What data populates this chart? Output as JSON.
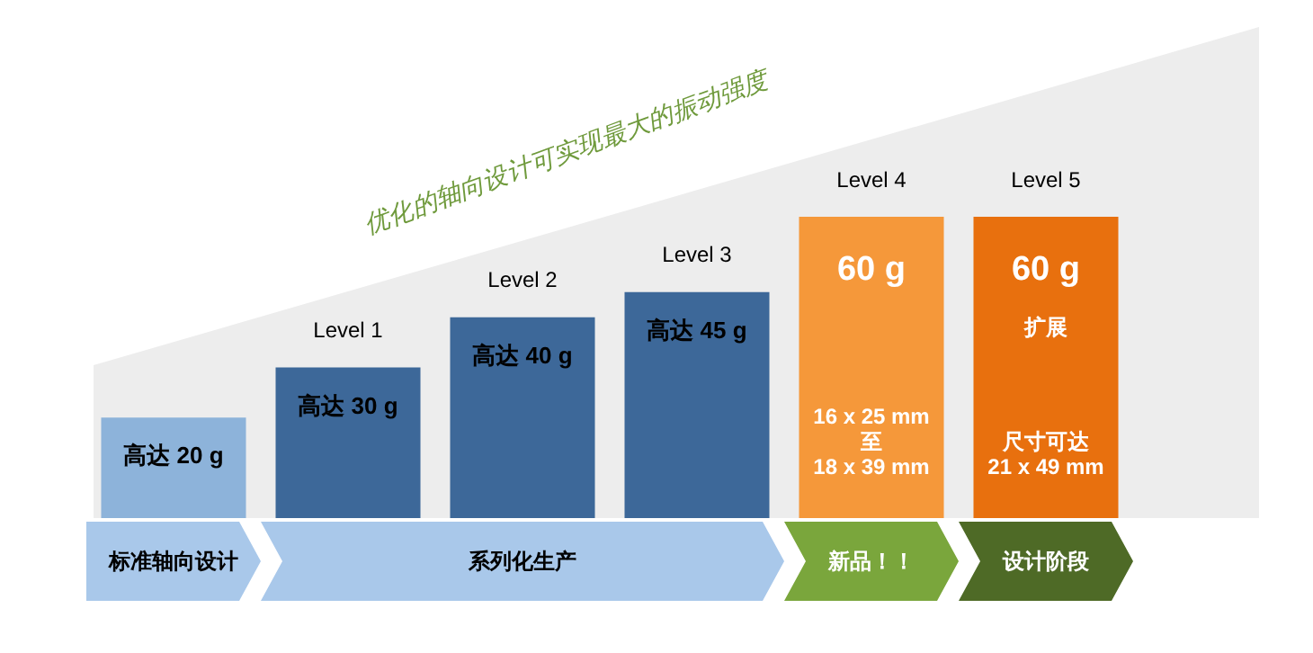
{
  "chart_data": {
    "type": "bar",
    "title": "优化的轴向设计可实现最大的振动强度",
    "categories": [
      null,
      "Level 1",
      "Level 2",
      "Level 3",
      "Level 4",
      "Level 5"
    ],
    "values": [
      20,
      30,
      40,
      45,
      60,
      60
    ],
    "colors": [
      "#8db3da",
      "#3d6899",
      "#3d6899",
      "#3d6899",
      "#f5983a",
      "#e8700e"
    ],
    "value_labels": [
      "高达 20 g",
      "高达 30 g",
      "高达 40 g",
      "高达 45 g",
      "60 g",
      "60 g"
    ],
    "data_labels": false,
    "legend": false,
    "annotations": [
      "16 x 25 mm\n至\n18 x 39 mm",
      "扩展",
      "尺寸可达\n21 x 49 mm",
      "标准轴向设计",
      "系列化生产",
      "新品！！",
      "设计阶段"
    ]
  }
}
